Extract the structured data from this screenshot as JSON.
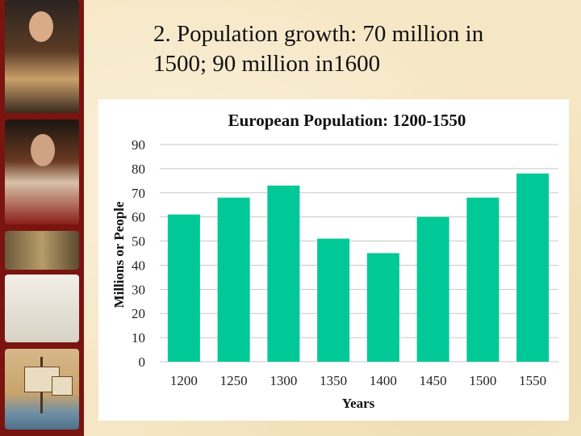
{
  "slide": {
    "title": "2.  Population growth: 70 million in\n     1500; 90 million in1600"
  },
  "decor": {
    "panels": [
      "king-portrait",
      "nobleman-portrait",
      "old-map",
      "astronomer-engraving",
      "sailing-ship"
    ]
  },
  "chart_data": {
    "type": "bar",
    "title": "European Population: 1200-1550",
    "xlabel": "Years",
    "ylabel": "Millions or People",
    "categories": [
      "1200",
      "1250",
      "1300",
      "1350",
      "1400",
      "1450",
      "1500",
      "1550"
    ],
    "values": [
      61,
      68,
      73,
      51,
      45,
      60,
      68,
      78
    ],
    "ylim": [
      0,
      90
    ],
    "yticks": [
      "0",
      "10",
      "20",
      "30",
      "40",
      "50",
      "60",
      "70",
      "80",
      "90"
    ],
    "grid": true,
    "bar_color": "#00c896",
    "grid_color": "#c8c8c8"
  }
}
